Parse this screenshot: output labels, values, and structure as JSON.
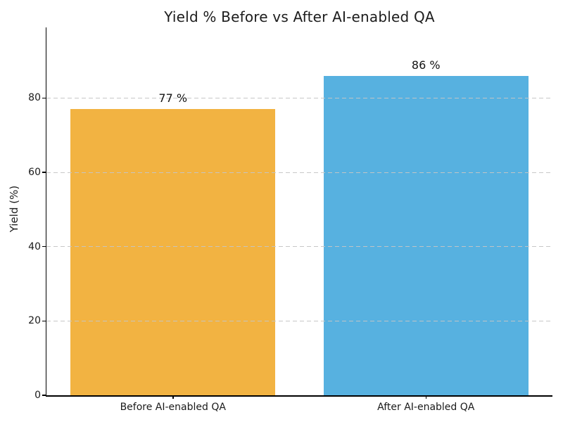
{
  "chart_data": {
    "type": "bar",
    "title": "Yield % Before vs After AI-enabled QA",
    "ylabel": "Yield (%)",
    "xlabel": "",
    "categories": [
      "Before AI-enabled QA",
      "After AI-enabled QA"
    ],
    "values": [
      77,
      86
    ],
    "value_labels": [
      "77 %",
      "86 %"
    ],
    "bar_colors": [
      "#F2B342",
      "#57B1E0"
    ],
    "yticks": [
      0,
      20,
      40,
      60,
      80
    ],
    "ylim": [
      0,
      99
    ],
    "grid": {
      "axis": "y",
      "style": "dashed",
      "color": "#C5C5C5",
      "on_top_of_bars": true
    },
    "legend_position": "none",
    "background_color": "#FFFFFF",
    "axis_color": "#000000"
  }
}
